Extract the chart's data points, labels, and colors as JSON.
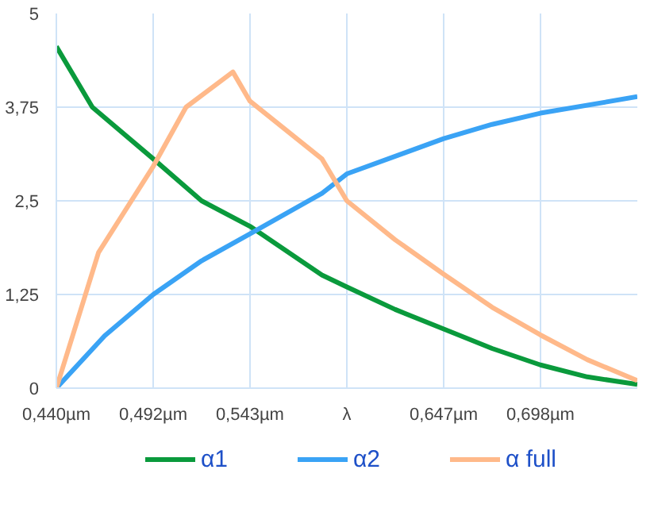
{
  "chart_data": {
    "type": "line",
    "xlim": [
      0.44,
      0.75
    ],
    "xticks": [
      {
        "value": 0.44,
        "label": "0,440µm"
      },
      {
        "value": 0.4917,
        "label": "0,492µm"
      },
      {
        "value": 0.5433,
        "label": "0,543µm"
      },
      {
        "value": 0.595,
        "label": "λ"
      },
      {
        "value": 0.6467,
        "label": "0,647µm"
      },
      {
        "value": 0.6983,
        "label": "0,698µm"
      }
    ],
    "ylim": [
      0,
      5
    ],
    "yticks": [
      {
        "value": 0,
        "label": "0"
      },
      {
        "value": 1.25,
        "label": "1,25"
      },
      {
        "value": 2.5,
        "label": "2,5"
      },
      {
        "value": 3.75,
        "label": "3,75"
      },
      {
        "value": 5,
        "label": "5"
      }
    ],
    "grid": true,
    "legend": "bottom",
    "marker": "none",
    "line_style": "solid",
    "series": [
      {
        "name": "α1",
        "color": "#0a9a3c",
        "x": [
          0.44,
          0.4592,
          0.4917,
          0.5175,
          0.5433,
          0.5817,
          0.595,
          0.6208,
          0.6467,
          0.6725,
          0.6983,
          0.7233,
          0.75
        ],
        "values": [
          4.56,
          3.75,
          3.06,
          2.5,
          2.16,
          1.51,
          1.35,
          1.05,
          0.79,
          0.53,
          0.31,
          0.15,
          0.05
        ]
      },
      {
        "name": "α2",
        "color": "#3aa3f5",
        "x": [
          0.44,
          0.4658,
          0.4917,
          0.5175,
          0.5433,
          0.5817,
          0.595,
          0.6467,
          0.6725,
          0.6983,
          0.75
        ],
        "values": [
          0,
          0.7,
          1.25,
          1.7,
          2.06,
          2.6,
          2.86,
          3.33,
          3.52,
          3.67,
          3.89
        ]
      },
      {
        "name": "α full",
        "color": "#ffb98a",
        "x": [
          0.44,
          0.4625,
          0.4917,
          0.5092,
          0.5342,
          0.5433,
          0.5817,
          0.595,
          0.6208,
          0.6467,
          0.6725,
          0.6983,
          0.7233,
          0.75
        ],
        "values": [
          0,
          1.81,
          2.96,
          3.75,
          4.22,
          3.83,
          3.06,
          2.5,
          1.98,
          1.52,
          1.08,
          0.71,
          0.38,
          0.1
        ]
      }
    ]
  }
}
